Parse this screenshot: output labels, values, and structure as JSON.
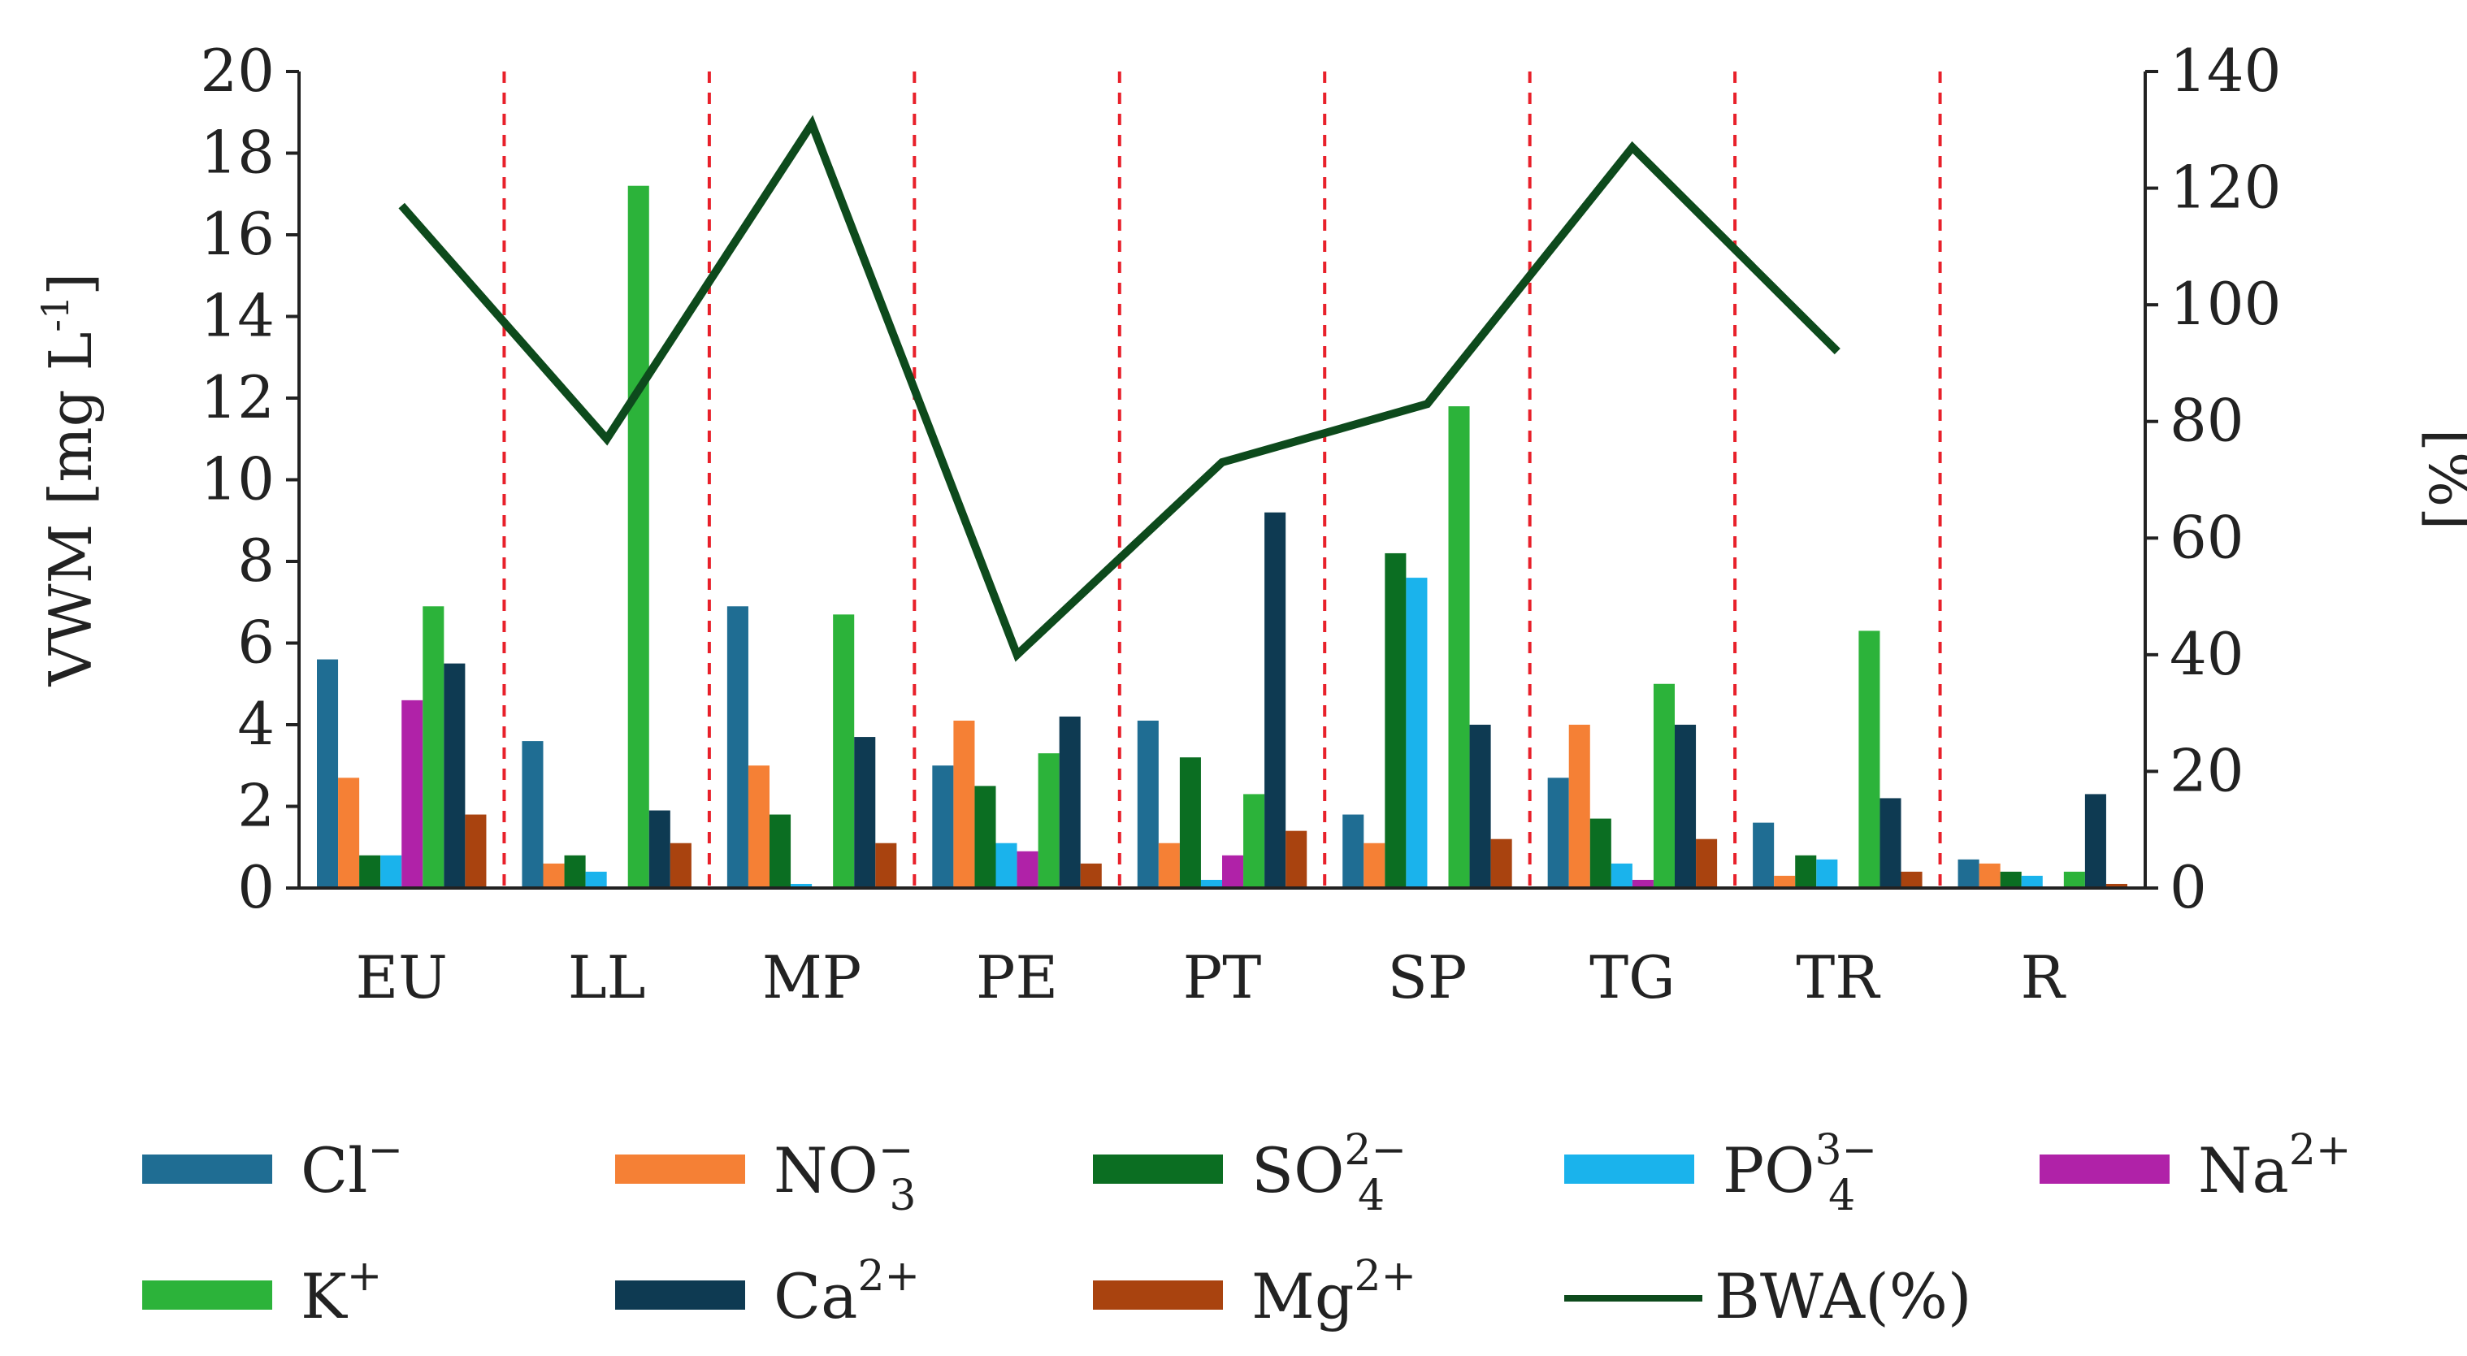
{
  "chart_data": {
    "type": "bar",
    "categories": [
      "EU",
      "LL",
      "MP",
      "PE",
      "PT",
      "SP",
      "TG",
      "TR",
      "R"
    ],
    "ylabel": "VWM [mg L",
    "ylabel_sup": "-1",
    "ylabel_end": "]",
    "y2label": "[%]",
    "ylim": [
      0,
      20
    ],
    "y2lim": [
      0,
      140
    ],
    "yticks": [
      "0",
      "2",
      "4",
      "6",
      "8",
      "10",
      "12",
      "14",
      "16",
      "18",
      "20"
    ],
    "y2ticks": [
      "0",
      "20",
      "40",
      "60",
      "80",
      "100",
      "120",
      "140"
    ],
    "series": [
      {
        "name": "Cl",
        "sup": "−",
        "sub": "",
        "color": "#1f6d93",
        "values": [
          5.6,
          3.6,
          6.9,
          3.0,
          4.1,
          1.8,
          2.7,
          1.6,
          0.7
        ]
      },
      {
        "name": "NO",
        "sup": "−",
        "sub": "3",
        "color": "#f58035",
        "values": [
          2.7,
          0.6,
          3.0,
          4.1,
          1.1,
          1.1,
          4.0,
          0.3,
          0.6
        ]
      },
      {
        "name": "SO",
        "sup": "2−",
        "sub": "4",
        "color": "#0b6e22",
        "values": [
          0.8,
          0.8,
          1.8,
          2.5,
          3.2,
          8.2,
          1.7,
          0.8,
          0.4
        ]
      },
      {
        "name": "PO",
        "sup": "3−",
        "sub": "4",
        "color": "#1ab3ec",
        "values": [
          0.8,
          0.4,
          0.1,
          1.1,
          0.2,
          7.6,
          0.6,
          0.7,
          0.3
        ]
      },
      {
        "name": "Na",
        "sup": "2+",
        "sub": "",
        "color": "#b022a8",
        "values": [
          4.6,
          0.0,
          0.0,
          0.9,
          0.8,
          0.0,
          0.2,
          0.0,
          0.0
        ]
      },
      {
        "name": "K",
        "sup": "+",
        "sub": "",
        "color": "#2cb33a",
        "values": [
          6.9,
          17.2,
          6.7,
          3.3,
          2.3,
          11.8,
          5.0,
          6.3,
          0.4
        ]
      },
      {
        "name": "Ca",
        "sup": "2+",
        "sub": "",
        "color": "#0e3a52",
        "values": [
          5.5,
          1.9,
          3.7,
          4.2,
          9.2,
          4.0,
          4.0,
          2.2,
          2.3
        ]
      },
      {
        "name": "Mg",
        "sup": "2+",
        "sub": "",
        "color": "#a9430f",
        "values": [
          1.8,
          1.1,
          1.1,
          0.6,
          1.4,
          1.2,
          1.2,
          0.4,
          0.1
        ]
      }
    ],
    "line_series": {
      "name": "BWA(%)",
      "axis": "right",
      "color": "#0d4a1c",
      "values": [
        117,
        77,
        131,
        40,
        73,
        83,
        127,
        92,
        null
      ]
    },
    "separators": "dashed vertical red lines between categories",
    "legend_position": "bottom"
  }
}
